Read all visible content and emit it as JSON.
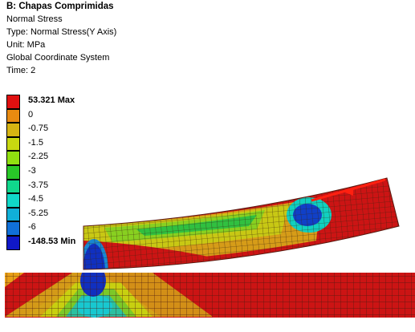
{
  "header": {
    "title": "B: Chapas Comprimidas",
    "result": "Normal Stress",
    "type": "Type: Normal Stress(Y Axis)",
    "unit": "Unit: MPa",
    "coord": "Global Coordinate System",
    "time": "Time: 2"
  },
  "legend": [
    {
      "label": "53.321 Max",
      "color": "#e01010"
    },
    {
      "label": "0",
      "color": "#e88a10"
    },
    {
      "label": "-0.75",
      "color": "#d6b412"
    },
    {
      "label": "-1.5",
      "color": "#c8d810"
    },
    {
      "label": "-2.25",
      "color": "#90e010"
    },
    {
      "label": "-3",
      "color": "#28c828"
    },
    {
      "label": "-3.75",
      "color": "#10d88c"
    },
    {
      "label": "-4.5",
      "color": "#10d8c8"
    },
    {
      "label": "-5.25",
      "color": "#10b0d8"
    },
    {
      "label": "-6",
      "color": "#1070d8"
    },
    {
      "label": "-148.53 Min",
      "color": "#1018c8"
    }
  ]
}
